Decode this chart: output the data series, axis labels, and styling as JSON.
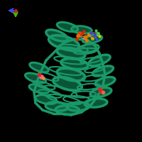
{
  "background_color": "#000000",
  "protein_color": "#1a9968",
  "protein_color2": "#0d7a50",
  "ligand_colors": {
    "orange": "#e87000",
    "red": "#dd2222",
    "yellow": "#ddcc00",
    "blue_ligand": "#4444cc",
    "green_ligand": "#44cc44",
    "pink": "#ee88aa",
    "cyan": "#44cccc"
  },
  "axis_colors": {
    "x_arrow": "#4444ff",
    "y_arrow": "#44bb00",
    "origin": "#cc2222"
  },
  "figsize": [
    2.0,
    2.0
  ],
  "dpi": 100
}
